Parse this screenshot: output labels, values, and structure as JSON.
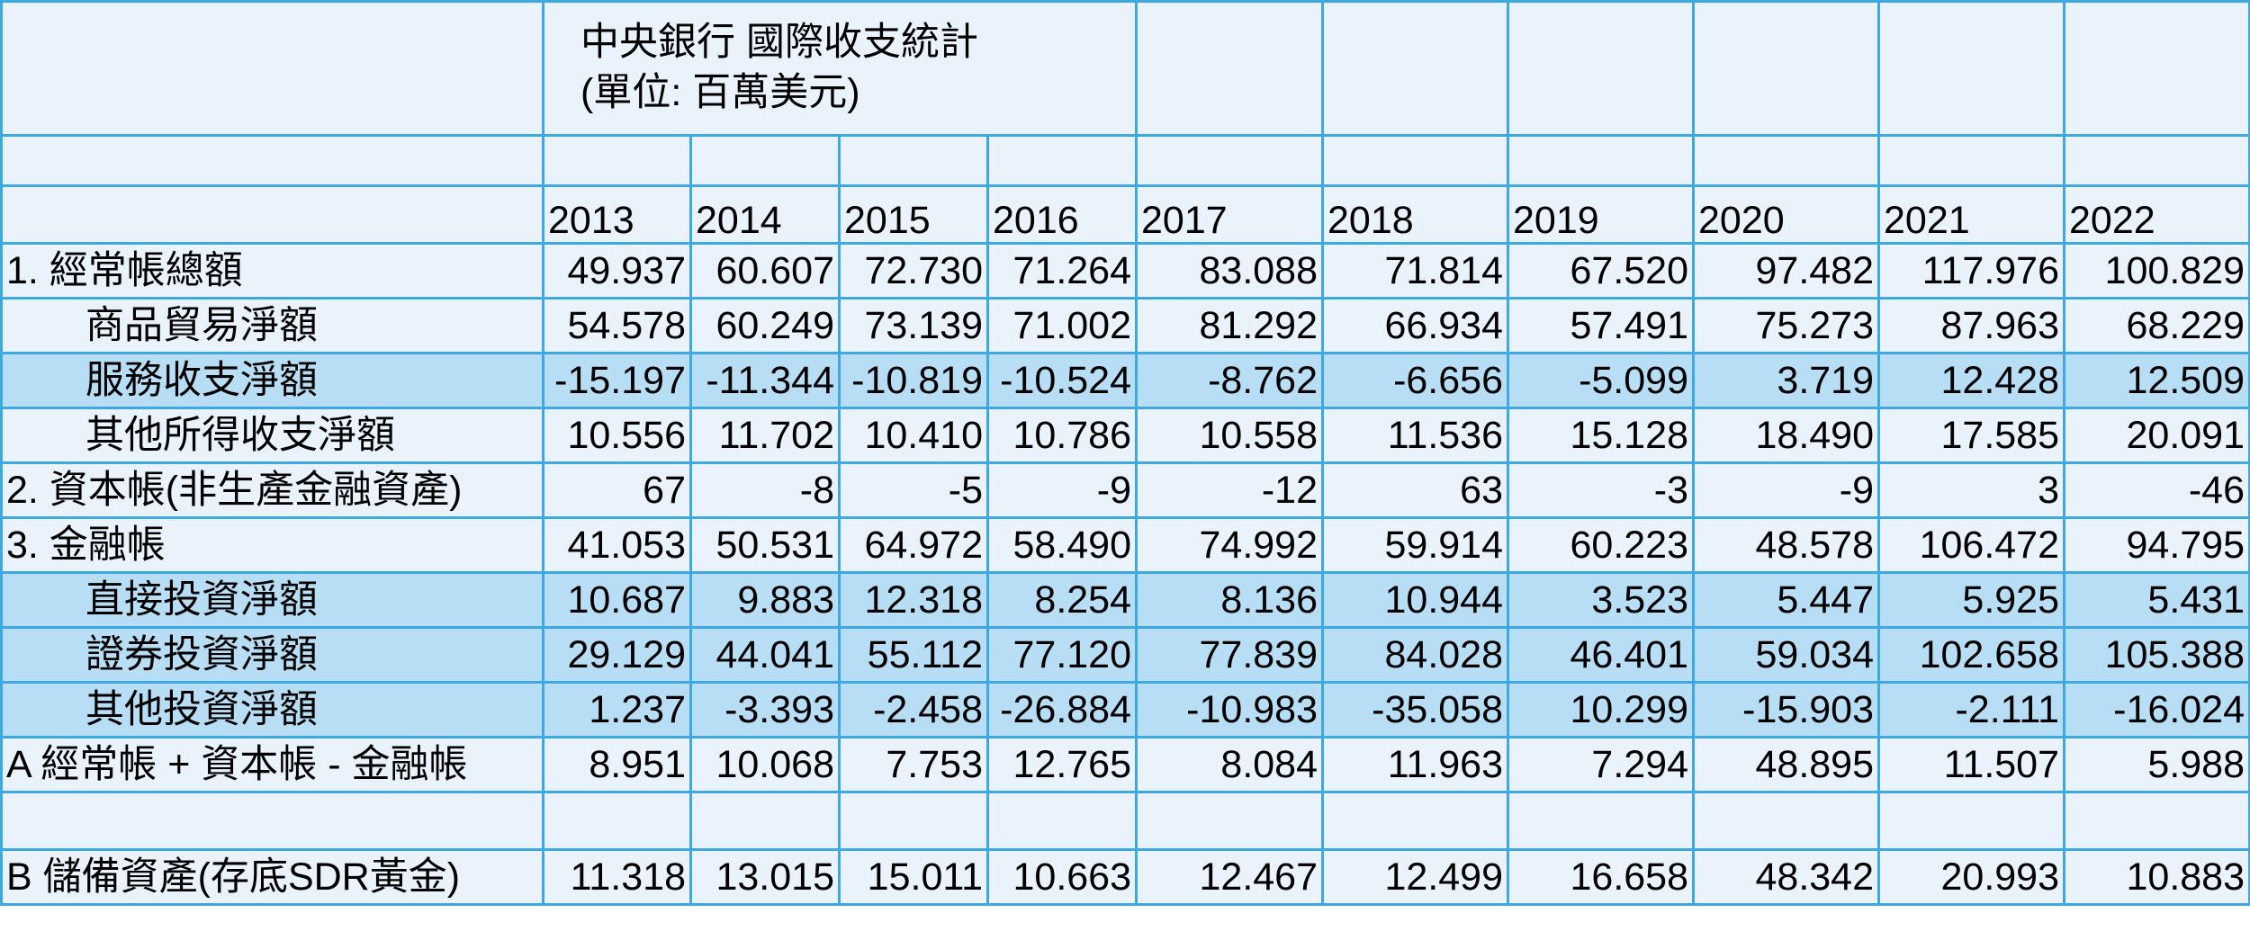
{
  "title": {
    "line1": "中央銀行 國際收支統計",
    "line2": "(單位: 百萬美元)"
  },
  "years": [
    "2013",
    "2014",
    "2015",
    "2016",
    "2017",
    "2018",
    "2019",
    "2020",
    "2021",
    "2022"
  ],
  "rows": [
    {
      "label": "1. 經常帳總額",
      "indent": false,
      "highlight": false,
      "values": [
        "49.937",
        "60.607",
        "72.730",
        "71.264",
        "83.088",
        "71.814",
        "67.520",
        "97.482",
        "117.976",
        "100.829"
      ]
    },
    {
      "label": "商品貿易淨額",
      "indent": true,
      "highlight": false,
      "values": [
        "54.578",
        "60.249",
        "73.139",
        "71.002",
        "81.292",
        "66.934",
        "57.491",
        "75.273",
        "87.963",
        "68.229"
      ]
    },
    {
      "label": "服務收支淨額",
      "indent": true,
      "highlight": true,
      "values": [
        "-15.197",
        "-11.344",
        "-10.819",
        "-10.524",
        "-8.762",
        "-6.656",
        "-5.099",
        "3.719",
        "12.428",
        "12.509"
      ]
    },
    {
      "label": "其他所得收支淨額",
      "indent": true,
      "highlight": false,
      "values": [
        "10.556",
        "11.702",
        "10.410",
        "10.786",
        "10.558",
        "11.536",
        "15.128",
        "18.490",
        "17.585",
        "20.091"
      ]
    },
    {
      "label": "2. 資本帳(非生產金融資產)",
      "indent": false,
      "highlight": false,
      "values": [
        "67",
        "-8",
        "-5",
        "-9",
        "-12",
        "63",
        "-3",
        "-9",
        "3",
        "-46"
      ]
    },
    {
      "label": "3. 金融帳",
      "indent": false,
      "highlight": false,
      "values": [
        "41.053",
        "50.531",
        "64.972",
        "58.490",
        "74.992",
        "59.914",
        "60.223",
        "48.578",
        "106.472",
        "94.795"
      ]
    },
    {
      "label": "直接投資淨額",
      "indent": true,
      "highlight": true,
      "values": [
        "10.687",
        "9.883",
        "12.318",
        "8.254",
        "8.136",
        "10.944",
        "3.523",
        "5.447",
        "5.925",
        "5.431"
      ]
    },
    {
      "label": "證券投資淨額",
      "indent": true,
      "highlight": true,
      "values": [
        "29.129",
        "44.041",
        "55.112",
        "77.120",
        "77.839",
        "84.028",
        "46.401",
        "59.034",
        "102.658",
        "105.388"
      ]
    },
    {
      "label": "其他投資淨額",
      "indent": true,
      "highlight": true,
      "values": [
        "1.237",
        "-3.393",
        "-2.458",
        "-26.884",
        "-10.983",
        "-35.058",
        "10.299",
        "-15.903",
        "-2.111",
        "-16.024"
      ]
    },
    {
      "label": "A  經常帳 + 資本帳 - 金融帳",
      "indent": false,
      "highlight": false,
      "values": [
        "8.951",
        "10.068",
        "7.753",
        "12.765",
        "8.084",
        "11.963",
        "7.294",
        "48.895",
        "11.507",
        "5.988"
      ]
    }
  ],
  "reserve_row": {
    "label": "B   儲備資產(存底SDR黃金)",
    "values": [
      "11.318",
      "13.015",
      "15.011",
      "10.663",
      "12.467",
      "12.499",
      "16.658",
      "48.342",
      "20.993",
      "10.883"
    ]
  },
  "colors": {
    "border": "#3ea8e0",
    "cell": "#eaf2fb",
    "highlight": "#b7def4"
  }
}
